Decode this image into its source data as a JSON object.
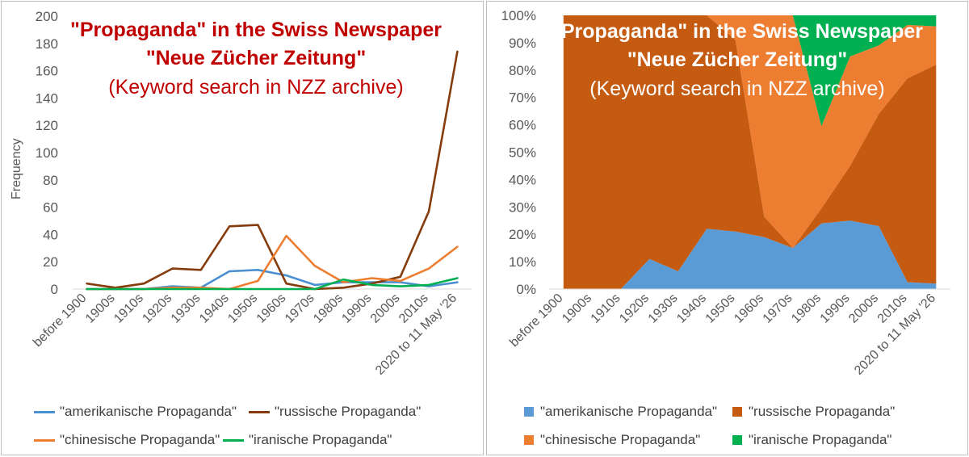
{
  "chart_data": [
    {
      "type": "line",
      "title": "\"Propaganda\" in the Swiss Newspaper",
      "title_line2": "\"Neue Zücher Zeitung\"",
      "subtitle": "(Keyword search in NZZ archive)",
      "title_color": "#c00000",
      "xlabel": "",
      "ylabel": "Frequency",
      "ylim": [
        0,
        200
      ],
      "yticks": [
        0,
        20,
        40,
        60,
        80,
        100,
        120,
        140,
        160,
        180,
        200
      ],
      "grid": false,
      "legend_position": "bottom",
      "categories": [
        "before 1900",
        "1900s",
        "1910s",
        "1920s",
        "1930s",
        "1940s",
        "1950s",
        "1960s",
        "1970s",
        "1980s",
        "1990s",
        "2000s",
        "2010s",
        "2020 to 11 May '26"
      ],
      "series": [
        {
          "name": "\"amerikanische Propaganda\"",
          "color": "#4a90d0",
          "values": [
            0,
            0,
            0,
            2,
            1,
            13,
            14,
            10,
            3,
            5,
            5,
            5,
            2,
            5
          ]
        },
        {
          "name": "\"russische Propaganda\"",
          "color": "#843c0c",
          "values": [
            4,
            1,
            4,
            15,
            14,
            46,
            47,
            4,
            0,
            1,
            4,
            9,
            57,
            174
          ]
        },
        {
          "name": "\"chinesische Propaganda\"",
          "color": "#ed7d31",
          "values": [
            0,
            0,
            0,
            1,
            1,
            0,
            6,
            39,
            17,
            5,
            8,
            6,
            15,
            31
          ]
        },
        {
          "name": "\"iranische Propaganda\"",
          "color": "#00b050",
          "values": [
            0,
            0,
            0,
            0,
            0,
            0,
            0,
            0,
            0,
            7,
            3,
            2,
            3,
            8
          ]
        }
      ]
    },
    {
      "type": "area",
      "stacking": "percent",
      "title": "\"Propaganda\" in the Swiss Newspaper",
      "title_line2": "\"Neue Zücher Zeitung\"",
      "subtitle": "(Keyword search in NZZ archive)",
      "title_color": "#ffffff",
      "xlabel": "",
      "ylabel": "",
      "ylim": [
        0,
        100
      ],
      "yticks": [
        "0%",
        "10%",
        "20%",
        "30%",
        "40%",
        "50%",
        "60%",
        "70%",
        "80%",
        "90%",
        "100%"
      ],
      "grid": false,
      "legend_position": "bottom",
      "categories": [
        "before 1900",
        "1900s",
        "1910s",
        "1920s",
        "1930s",
        "1940s",
        "1950s",
        "1960s",
        "1970s",
        "1980s",
        "1990s",
        "2000s",
        "2010s",
        "2020 to 11 May '26"
      ],
      "series": [
        {
          "name": "\"amerikanische Propaganda\"",
          "color": "#5b9bd5",
          "values": [
            0,
            0,
            0,
            11,
            6.5,
            22,
            21,
            19,
            15,
            24,
            25,
            23,
            2.5,
            2
          ]
        },
        {
          "name": "\"russische Propaganda\"",
          "color": "#c55a11",
          "values": [
            100,
            100,
            100,
            89,
            93.5,
            78,
            70,
            7.5,
            0,
            5.5,
            20,
            41,
            74.5,
            80
          ]
        },
        {
          "name": "\"chinesische Propaganda\"",
          "color": "#ed7d31",
          "values": [
            0,
            0,
            0,
            0,
            0,
            0,
            9,
            73.5,
            85,
            30,
            40,
            25,
            19.5,
            14
          ]
        },
        {
          "name": "\"iranische Propaganda\"",
          "color": "#00b050",
          "values": [
            0,
            0,
            0,
            0,
            0,
            0,
            0,
            0,
            0,
            40.5,
            15,
            11,
            3.5,
            4
          ]
        }
      ]
    }
  ]
}
